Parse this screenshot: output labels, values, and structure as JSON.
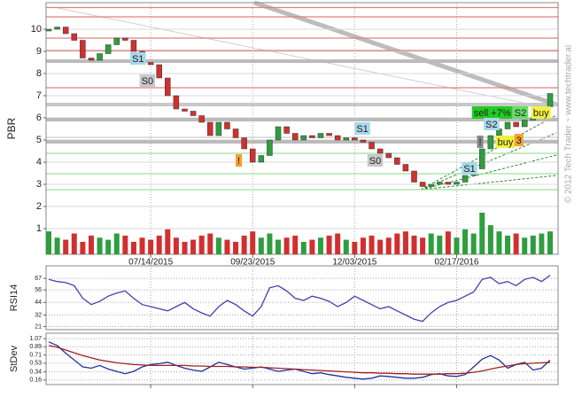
{
  "chart_data": [
    {
      "type": "candle",
      "y_label": "PBR",
      "categories": [
        null,
        null,
        null,
        null,
        null,
        null,
        null,
        null,
        null,
        null,
        null,
        null,
        "07/14/2015",
        null,
        null,
        null,
        null,
        null,
        null,
        null,
        null,
        null,
        null,
        null,
        "09/23/2015",
        null,
        null,
        null,
        null,
        null,
        null,
        null,
        null,
        null,
        null,
        null,
        "12/03/2015",
        null,
        null,
        null,
        null,
        null,
        null,
        null,
        null,
        null,
        null,
        null,
        "02/17/2016",
        null,
        null,
        null,
        null,
        null,
        null,
        null,
        null,
        null,
        null,
        null
      ],
      "values": [
        10.0,
        10.1,
        9.8,
        9.5,
        8.7,
        8.6,
        8.9,
        9.3,
        9.6,
        9.5,
        9.0,
        8.5,
        8.4,
        7.8,
        7.0,
        6.4,
        6.3,
        6.1,
        5.8,
        5.2,
        5.8,
        5.5,
        5.1,
        4.6,
        4.0,
        4.3,
        5.0,
        5.6,
        5.3,
        5.0,
        5.2,
        5.1,
        5.3,
        5.2,
        5.0,
        5.1,
        5.0,
        4.9,
        4.6,
        4.4,
        4.2,
        3.9,
        3.6,
        3.1,
        2.9,
        3.0,
        3.1,
        3.0,
        3.1,
        3.4,
        3.7,
        4.6,
        5.2,
        5.5,
        5.8,
        5.6,
        5.9,
        6.0,
        6.5,
        7.1
      ],
      "volume": [
        55,
        40,
        35,
        50,
        30,
        45,
        40,
        35,
        50,
        45,
        30,
        40,
        35,
        45,
        60,
        40,
        30,
        35,
        45,
        50,
        40,
        35,
        30,
        45,
        55,
        40,
        50,
        35,
        40,
        45,
        30,
        35,
        40,
        45,
        50,
        35,
        30,
        40,
        45,
        35,
        40,
        50,
        55,
        45,
        40,
        50,
        45,
        55,
        40,
        60,
        50,
        100,
        70,
        55,
        45,
        50,
        40,
        45,
        50,
        55
      ],
      "vlim": [
        0,
        100
      ],
      "up_color": "#2e9e3e",
      "down_color": "#d03030",
      "ylim": [
        -0.16,
        11.2
      ],
      "yticks": [
        1,
        2,
        3,
        4,
        5,
        6,
        7,
        8,
        9,
        10
      ],
      "levels": [
        {
          "value": 10.98,
          "color": "#e08080",
          "kind": "line"
        },
        {
          "value": 10.56,
          "color": "#e08080",
          "kind": "line"
        },
        {
          "value": 9.6,
          "color": "#e08080",
          "kind": "line"
        },
        {
          "value": 9.04,
          "color": "#e08080",
          "kind": "line"
        },
        {
          "value": 7.36,
          "color": "#e08080",
          "kind": "line"
        },
        {
          "value": 8.56,
          "color": "#bbbbbb",
          "kind": "band"
        },
        {
          "value": 6.6,
          "color": "#c8c8c8",
          "kind": "band"
        },
        {
          "value": 5.92,
          "color": "#bbbbbb",
          "kind": "band"
        },
        {
          "value": 5.12,
          "color": "#cccccc",
          "kind": "line"
        },
        {
          "value": 4.92,
          "color": "#bbbbbb",
          "kind": "band"
        },
        {
          "value": 4.4,
          "color": "#9ee09e",
          "kind": "line"
        },
        {
          "value": 3.48,
          "color": "#9ee09e",
          "kind": "line"
        },
        {
          "value": 2.76,
          "color": "#9ee09e",
          "kind": "line"
        }
      ],
      "annotations": [
        {
          "text": "S1",
          "x": 9.6,
          "y": 8.68,
          "bg": "#a8d8ea"
        },
        {
          "text": "S0",
          "x": 10.7,
          "y": 7.68,
          "bg": "#c8c8c8"
        },
        {
          "text": "!",
          "x": 22,
          "y": 4.08,
          "bg": "#f5a030"
        },
        {
          "text": "S1",
          "x": 36,
          "y": 5.52,
          "bg": "#a8d8ea"
        },
        {
          "text": "S0",
          "x": 37.5,
          "y": 4.08,
          "bg": "#c8c8c8"
        },
        {
          "text": "S1",
          "x": 48.6,
          "y": 3.72,
          "bg": "#a8d8ea"
        },
        {
          "text": "sell +7%",
          "x": 49.8,
          "y": 6.24,
          "bg": "#22cc22"
        },
        {
          "text": "S2",
          "x": 51.2,
          "y": 5.72,
          "bg": "#a8d8ea"
        },
        {
          "text": "S2",
          "x": 54.6,
          "y": 6.24,
          "bg": "#66dd66"
        },
        {
          "text": "buy",
          "x": 56.8,
          "y": 6.24,
          "bg": "#f0f040"
        },
        {
          "text": "!",
          "x": 50.4,
          "y": 4.92,
          "bg": "#888888"
        },
        {
          "text": "buy",
          "x": 52.6,
          "y": 4.92,
          "bg": "#f0f040"
        },
        {
          "text": "3",
          "x": 54.8,
          "y": 5.0,
          "bg": "#f5a030"
        }
      ],
      "watermark": "© 2012 Tech Trader ~ www.techtrader.ai"
    },
    {
      "type": "line",
      "y_label": "RSI14",
      "color": "#4040b0",
      "values": [
        66,
        64,
        63,
        60,
        48,
        42,
        45,
        50,
        53,
        55,
        48,
        42,
        40,
        38,
        36,
        40,
        44,
        38,
        34,
        31,
        40,
        46,
        42,
        36,
        31,
        40,
        58,
        60,
        55,
        48,
        46,
        50,
        48,
        45,
        40,
        44,
        50,
        46,
        42,
        38,
        40,
        36,
        32,
        28,
        26,
        34,
        40,
        44,
        46,
        50,
        54,
        66,
        68,
        62,
        64,
        60,
        66,
        68,
        64,
        70
      ],
      "ylim": [
        18,
        79
      ],
      "yticks": [
        21,
        32,
        44,
        56,
        67
      ]
    },
    {
      "type": "line",
      "y_label": "StDev",
      "series": [
        {
          "color": "#2030a0",
          "values": [
            1.0,
            0.92,
            0.75,
            0.6,
            0.45,
            0.42,
            0.48,
            0.4,
            0.35,
            0.3,
            0.35,
            0.45,
            0.5,
            0.52,
            0.55,
            0.48,
            0.42,
            0.38,
            0.35,
            0.45,
            0.55,
            0.5,
            0.45,
            0.4,
            0.42,
            0.45,
            0.4,
            0.35,
            0.38,
            0.4,
            0.35,
            0.3,
            0.32,
            0.28,
            0.25,
            0.22,
            0.2,
            0.18,
            0.2,
            0.25,
            0.24,
            0.22,
            0.2,
            0.2,
            0.22,
            0.28,
            0.3,
            0.25,
            0.24,
            0.28,
            0.45,
            0.62,
            0.7,
            0.6,
            0.42,
            0.5,
            0.55,
            0.38,
            0.42,
            0.6
          ]
        },
        {
          "color": "#a02020",
          "values": [
            0.92,
            0.88,
            0.82,
            0.76,
            0.7,
            0.65,
            0.6,
            0.57,
            0.54,
            0.52,
            0.5,
            0.49,
            0.48,
            0.48,
            0.48,
            0.48,
            0.48,
            0.47,
            0.47,
            0.46,
            0.46,
            0.46,
            0.45,
            0.45,
            0.44,
            0.44,
            0.43,
            0.42,
            0.41,
            0.4,
            0.39,
            0.38,
            0.37,
            0.36,
            0.35,
            0.34,
            0.33,
            0.32,
            0.32,
            0.31,
            0.31,
            0.3,
            0.3,
            0.29,
            0.29,
            0.29,
            0.29,
            0.3,
            0.3,
            0.31,
            0.33,
            0.36,
            0.4,
            0.44,
            0.47,
            0.5,
            0.52,
            0.53,
            0.54,
            0.55
          ]
        }
      ],
      "ylim": [
        0.06,
        1.19
      ],
      "yticks": [
        0.16,
        0.34,
        0.53,
        0.71,
        0.89,
        1.07
      ]
    }
  ]
}
